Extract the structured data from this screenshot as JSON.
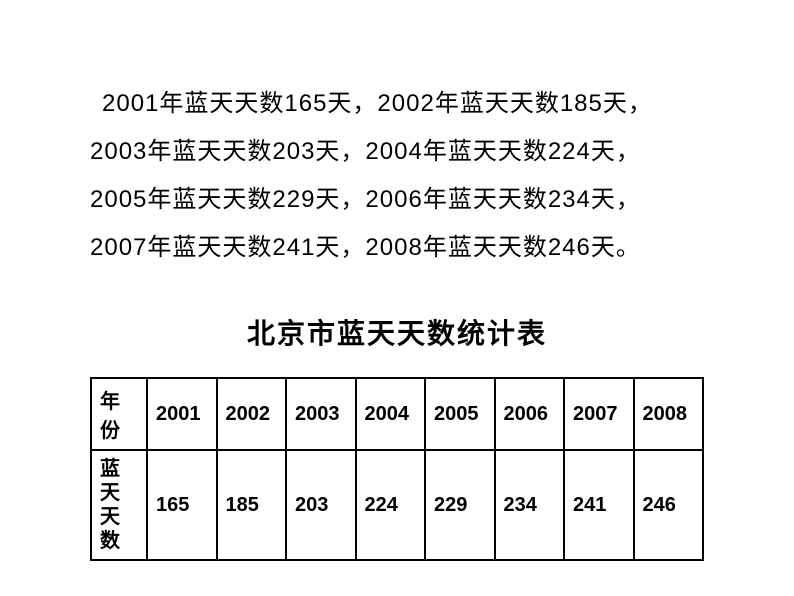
{
  "description": {
    "line1": "2001年蓝天天数165天，2002年蓝天天数185天，",
    "line2": "2003年蓝天天数203天，2004年蓝天天数224天，",
    "line3": "2005年蓝天天数229天，2006年蓝天天数234天，",
    "line4": "2007年蓝天天数241天，2008年蓝天天数246天。"
  },
  "title": "北京市蓝天天数统计表",
  "table": {
    "row1_header": "年份",
    "row2_header": "蓝天天数",
    "columns": [
      "2001",
      "2002",
      "2003",
      "2004",
      "2005",
      "2006",
      "2007",
      "2008"
    ],
    "values": [
      "165",
      "185",
      "203",
      "224",
      "229",
      "234",
      "241",
      "246"
    ],
    "border_color": "#000000",
    "background_color": "#ffffff",
    "header_fontsize": 20,
    "cell_fontsize": 20,
    "font_weight": "bold"
  },
  "colors": {
    "text": "#000000",
    "background": "#ffffff"
  },
  "typography": {
    "description_fontsize": 24,
    "title_fontsize": 28,
    "title_fontweight": "bold"
  }
}
